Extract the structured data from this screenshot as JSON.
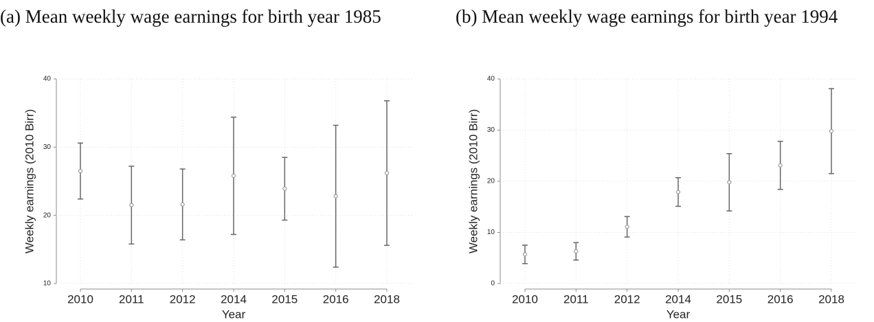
{
  "chart_data": [
    {
      "type": "errorbar",
      "title": "(a) Mean weekly wage earnings for birth year 1985",
      "xlabel": "Year",
      "ylabel": "Weekly earnings (2010 Birr)",
      "categories": [
        "2010",
        "2011",
        "2012",
        "2014",
        "2015",
        "2016",
        "2018"
      ],
      "values": [
        26.5,
        21.5,
        21.6,
        25.8,
        23.9,
        22.8,
        26.2
      ],
      "errors": [
        4.1,
        5.7,
        5.2,
        8.6,
        4.6,
        10.4,
        10.6
      ],
      "color": "#666666",
      "ylim": [
        10,
        40
      ],
      "yticks": [
        10,
        20,
        30,
        40
      ],
      "grid": true
    },
    {
      "type": "errorbar",
      "title": "(b) Mean weekly wage earnings for birth year 1994",
      "xlabel": "Year",
      "ylabel": "Weekly earnings (2010 Birr)",
      "categories": [
        "2010",
        "2011",
        "2012",
        "2014",
        "2015",
        "2016",
        "2018"
      ],
      "values": [
        5.7,
        6.3,
        11.1,
        17.9,
        19.8,
        23.1,
        29.8
      ],
      "errors": [
        1.8,
        1.7,
        2.0,
        2.8,
        5.6,
        4.7,
        8.3
      ],
      "color": "#666666",
      "ylim": [
        0,
        40
      ],
      "yticks": [
        0,
        10,
        20,
        30,
        40
      ],
      "grid": true
    }
  ]
}
